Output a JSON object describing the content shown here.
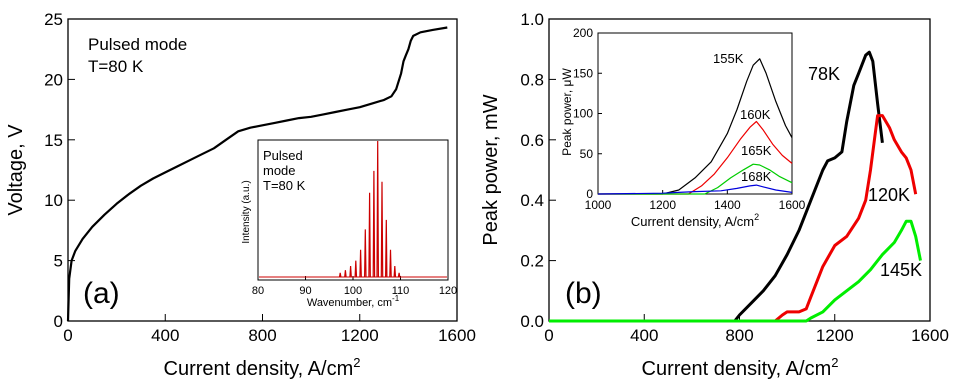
{
  "chart_data": [
    {
      "type": "line",
      "panel_label": "(a)",
      "xlabel": "Current density, A/cm",
      "xlabel_sup": "2",
      "ylabel": "Voltage, V",
      "xlim": [
        0,
        1600
      ],
      "ylim": [
        0,
        25
      ],
      "xticks": [
        0,
        400,
        800,
        1200,
        1600
      ],
      "yticks": [
        0,
        5,
        10,
        15,
        20,
        25
      ],
      "annotations": [
        "Pulsed mode",
        "T=80 K"
      ],
      "series": [
        {
          "color": "#000000",
          "x": [
            0,
            5,
            15,
            30,
            60,
            100,
            150,
            200,
            250,
            300,
            350,
            400,
            450,
            500,
            550,
            600,
            650,
            700,
            750,
            800,
            850,
            900,
            950,
            1000,
            1050,
            1100,
            1150,
            1200,
            1250,
            1300,
            1330,
            1350,
            1370,
            1380,
            1390,
            1400,
            1410,
            1420,
            1450,
            1500,
            1560
          ],
          "y": [
            0,
            3.5,
            5.0,
            5.8,
            6.8,
            7.8,
            8.8,
            9.7,
            10.5,
            11.2,
            11.8,
            12.3,
            12.8,
            13.3,
            13.8,
            14.3,
            15.0,
            15.7,
            16.0,
            16.2,
            16.4,
            16.6,
            16.8,
            16.9,
            17.1,
            17.3,
            17.5,
            17.7,
            18.0,
            18.3,
            18.6,
            19.2,
            20.5,
            21.5,
            22.0,
            22.5,
            23.2,
            23.6,
            23.9,
            24.1,
            24.3
          ]
        }
      ]
    },
    {
      "type": "line",
      "inset_of": "(a)",
      "annotations": [
        "Pulsed",
        "mode",
        "T=80 K"
      ],
      "xlabel": "Wavenumber, cm",
      "xlabel_sup": "-1",
      "ylabel": "Intensity (a.u.)",
      "xlim": [
        80,
        120
      ],
      "xticks": [
        80,
        90,
        100,
        110,
        120
      ],
      "y_ticks_shown": false,
      "series": [
        {
          "color": "#cc0000",
          "peaks": [
            {
              "x": 97.3,
              "h": 0.03
            },
            {
              "x": 98.4,
              "h": 0.05
            },
            {
              "x": 99.5,
              "h": 0.08
            },
            {
              "x": 100.6,
              "h": 0.12
            },
            {
              "x": 101.6,
              "h": 0.2
            },
            {
              "x": 102.6,
              "h": 0.35
            },
            {
              "x": 103.5,
              "h": 0.62
            },
            {
              "x": 104.4,
              "h": 0.78
            },
            {
              "x": 105.2,
              "h": 1.0
            },
            {
              "x": 106.1,
              "h": 0.7
            },
            {
              "x": 107.0,
              "h": 0.42
            },
            {
              "x": 107.9,
              "h": 0.2
            },
            {
              "x": 108.8,
              "h": 0.08
            },
            {
              "x": 109.7,
              "h": 0.03
            }
          ]
        }
      ]
    },
    {
      "type": "line",
      "panel_label": "(b)",
      "xlabel": "Current density, A/cm",
      "xlabel_sup": "2",
      "ylabel": "Peak power, mW",
      "xlim": [
        0,
        1600
      ],
      "ylim": [
        0,
        1.0
      ],
      "xticks": [
        0,
        400,
        800,
        1200,
        1600
      ],
      "yticks": [
        "0.0",
        "0.2",
        "0.4",
        "0.6",
        "0.8",
        "1.0"
      ],
      "series": [
        {
          "name": "78K",
          "color": "#000000",
          "x": [
            0,
            780,
            800,
            850,
            900,
            950,
            1000,
            1050,
            1100,
            1150,
            1170,
            1200,
            1230,
            1250,
            1280,
            1300,
            1330,
            1345,
            1360,
            1380,
            1400
          ],
          "y": [
            0,
            0,
            0.02,
            0.06,
            0.1,
            0.15,
            0.22,
            0.3,
            0.4,
            0.5,
            0.53,
            0.54,
            0.56,
            0.66,
            0.78,
            0.82,
            0.88,
            0.89,
            0.86,
            0.72,
            0.59
          ]
        },
        {
          "name": "120K",
          "color": "#ee0000",
          "x": [
            0,
            950,
            980,
            1000,
            1050,
            1080,
            1100,
            1150,
            1200,
            1250,
            1300,
            1330,
            1350,
            1370,
            1380,
            1400,
            1430,
            1450,
            1480,
            1500,
            1520,
            1540
          ],
          "y": [
            0,
            0,
            0.02,
            0.03,
            0.03,
            0.04,
            0.08,
            0.18,
            0.25,
            0.28,
            0.34,
            0.4,
            0.5,
            0.62,
            0.68,
            0.68,
            0.64,
            0.6,
            0.56,
            0.54,
            0.5,
            0.42
          ]
        },
        {
          "name": "145K",
          "color": "#00ee00",
          "x": [
            0,
            1080,
            1100,
            1150,
            1200,
            1250,
            1300,
            1350,
            1400,
            1450,
            1480,
            1500,
            1520,
            1540,
            1560
          ],
          "y": [
            0,
            0,
            0.01,
            0.03,
            0.07,
            0.1,
            0.13,
            0.17,
            0.22,
            0.26,
            0.3,
            0.33,
            0.33,
            0.28,
            0.2
          ]
        }
      ]
    },
    {
      "type": "line",
      "inset_of": "(b)",
      "xlabel": "Current density, A/cm",
      "xlabel_sup": "2",
      "ylabel": "Peak power, ",
      "ylabel_unit": "μW",
      "xlim": [
        1000,
        1600
      ],
      "ylim": [
        0,
        200
      ],
      "xticks": [
        1000,
        1200,
        1400,
        1600
      ],
      "yticks": [
        0,
        50,
        100,
        150,
        200
      ],
      "series": [
        {
          "name": "155K",
          "color": "#000000",
          "x": [
            1000,
            1200,
            1250,
            1300,
            1350,
            1400,
            1430,
            1460,
            1480,
            1500,
            1520,
            1550,
            1580,
            1600
          ],
          "y": [
            0,
            0,
            5,
            20,
            40,
            75,
            105,
            140,
            160,
            168,
            150,
            115,
            85,
            70
          ]
        },
        {
          "name": "160K",
          "color": "#ee0000",
          "x": [
            1000,
            1280,
            1320,
            1360,
            1400,
            1440,
            1470,
            1490,
            1510,
            1540,
            1570,
            1600
          ],
          "y": [
            0,
            0,
            10,
            25,
            45,
            68,
            83,
            90,
            80,
            62,
            48,
            38
          ]
        },
        {
          "name": "165K",
          "color": "#00cc00",
          "x": [
            1000,
            1330,
            1370,
            1410,
            1450,
            1480,
            1500,
            1530,
            1560,
            1600
          ],
          "y": [
            0,
            0,
            8,
            20,
            30,
            37,
            36,
            30,
            22,
            14
          ]
        },
        {
          "name": "168K",
          "color": "#0000dd",
          "x": [
            1000,
            1200,
            1250,
            1300,
            1380,
            1430,
            1470,
            1490,
            1510,
            1550,
            1600
          ],
          "y": [
            0,
            1,
            2,
            3,
            4,
            7,
            10,
            11,
            9,
            5,
            2
          ]
        }
      ]
    }
  ]
}
